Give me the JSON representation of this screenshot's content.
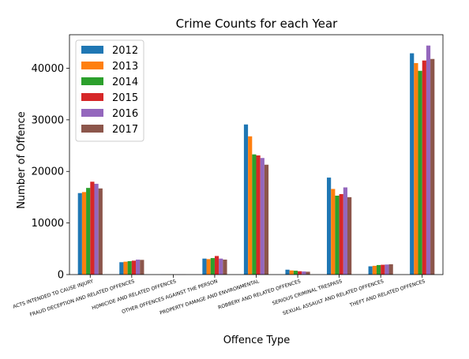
{
  "chart_data": {
    "type": "bar",
    "title": "Crime Counts for each Year",
    "xlabel": "Offence Type",
    "ylabel": "Number of Offence",
    "ylim": [
      0,
      46500
    ],
    "yticks": [
      0,
      10000,
      20000,
      30000,
      40000
    ],
    "grid": false,
    "legend_position": "top-left",
    "categories": [
      "ACTS INTENDED TO CAUSE INJURY",
      "FRAUD DECEPTION AND RELATED OFFENCES",
      "HOMICIDE AND RELATED OFFENCES",
      "OTHER OFFENCES AGAINST THE PERSON",
      "PROPERTY DAMAGE AND ENVIRONMENTAL",
      "ROBBERY AND RELATED OFFENCES",
      "SERIOUS CRIMINAL TRESPASS",
      "SEXUAL ASSAULT AND RELATED OFFENCES",
      "THEFT AND RELATED OFFENCES"
    ],
    "series": [
      {
        "name": "2012",
        "color": "#1f77b4",
        "values": [
          15800,
          2400,
          20,
          3100,
          29100,
          950,
          18800,
          1600,
          42900
        ]
      },
      {
        "name": "2013",
        "color": "#ff7f0e",
        "values": [
          16000,
          2500,
          20,
          3000,
          26800,
          800,
          16600,
          1700,
          41000
        ]
      },
      {
        "name": "2014",
        "color": "#2ca02c",
        "values": [
          16800,
          2600,
          20,
          3200,
          23300,
          750,
          15300,
          1850,
          39500
        ]
      },
      {
        "name": "2015",
        "color": "#d62728",
        "values": [
          18000,
          2700,
          20,
          3600,
          23100,
          650,
          15600,
          1900,
          41500
        ]
      },
      {
        "name": "2016",
        "color": "#9467bd",
        "values": [
          17600,
          2900,
          20,
          3100,
          22600,
          600,
          16900,
          1950,
          44400
        ]
      },
      {
        "name": "2017",
        "color": "#8c564b",
        "values": [
          16700,
          2850,
          20,
          2900,
          21300,
          550,
          15000,
          2000,
          41800
        ]
      }
    ]
  }
}
